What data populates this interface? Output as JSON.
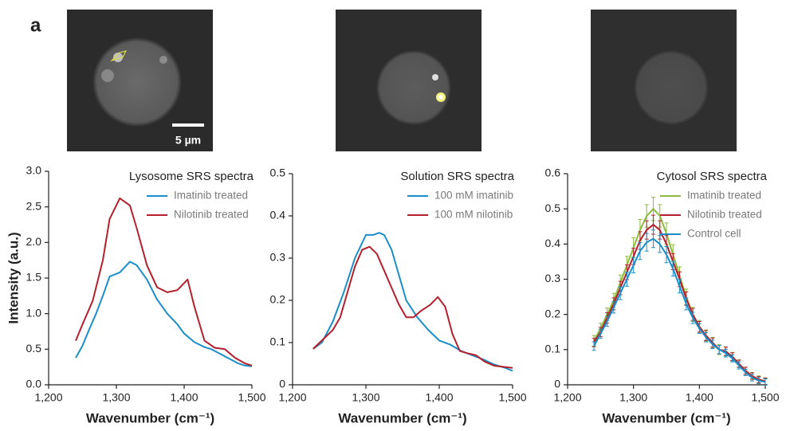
{
  "panel_label": "a",
  "scale_bar_label": "5 µm",
  "chart_data": [
    {
      "type": "line",
      "title": "Lysosome SRS spectra",
      "xlabel": "Wavenumber (cm⁻¹)",
      "ylabel": "Intensity (a.u.)",
      "xlim": [
        1200,
        1500
      ],
      "ylim": [
        0,
        3
      ],
      "xticks": [
        {
          "value": 1200,
          "label": "1,200"
        },
        {
          "value": 1300,
          "label": "1,300"
        },
        {
          "value": 1400,
          "label": "1,400"
        },
        {
          "value": 1500,
          "label": "1,500"
        }
      ],
      "yticks": [
        {
          "value": 0,
          "label": "0.0"
        },
        0.5,
        {
          "value": 1,
          "label": "1.0"
        },
        1.5,
        {
          "value": 2,
          "label": "2.0"
        },
        2.5,
        {
          "value": 3,
          "label": "3.0"
        }
      ],
      "series": [
        {
          "name": "Imatinib treated",
          "color": "#1b8ec9",
          "x": [
            1240,
            1250,
            1260,
            1270,
            1280,
            1290,
            1305,
            1320,
            1330,
            1345,
            1360,
            1375,
            1390,
            1400,
            1415,
            1430,
            1440,
            1460,
            1480,
            1490,
            1500
          ],
          "values": [
            0.38,
            0.55,
            0.78,
            1.0,
            1.25,
            1.52,
            1.58,
            1.73,
            1.68,
            1.48,
            1.2,
            1.0,
            0.85,
            0.72,
            0.6,
            0.53,
            0.5,
            0.4,
            0.3,
            0.27,
            0.26
          ]
        },
        {
          "name": "Nilotinib treated",
          "color": "#b3202d",
          "x": [
            1240,
            1250,
            1265,
            1280,
            1290,
            1305,
            1320,
            1330,
            1345,
            1360,
            1375,
            1390,
            1405,
            1415,
            1430,
            1445,
            1460,
            1475,
            1490,
            1500
          ],
          "values": [
            0.62,
            0.85,
            1.18,
            1.75,
            2.33,
            2.62,
            2.52,
            2.2,
            1.68,
            1.37,
            1.3,
            1.33,
            1.48,
            1.1,
            0.62,
            0.52,
            0.5,
            0.38,
            0.3,
            0.27
          ]
        }
      ]
    },
    {
      "type": "line",
      "title": "Solution SRS spectra",
      "xlabel": "Wavenumber (cm⁻¹)",
      "xlim": [
        1200,
        1500
      ],
      "ylim": [
        0,
        0.5
      ],
      "xticks": [
        {
          "value": 1200,
          "label": "1,200"
        },
        {
          "value": 1300,
          "label": "1,300"
        },
        {
          "value": 1400,
          "label": "1,400"
        },
        {
          "value": 1500,
          "label": "1,500"
        }
      ],
      "yticks": [
        0,
        0.1,
        0.2,
        0.3,
        0.4,
        0.5
      ],
      "series": [
        {
          "name": "100 mM imatinib",
          "color": "#1b8ec9",
          "x": [
            1228,
            1240,
            1255,
            1270,
            1285,
            1300,
            1310,
            1318,
            1325,
            1335,
            1345,
            1355,
            1370,
            1385,
            1400,
            1415,
            1430,
            1445,
            1460,
            1475,
            1490,
            1500
          ],
          "values": [
            0.085,
            0.1,
            0.15,
            0.22,
            0.3,
            0.355,
            0.355,
            0.36,
            0.355,
            0.32,
            0.26,
            0.2,
            0.16,
            0.13,
            0.105,
            0.095,
            0.08,
            0.07,
            0.06,
            0.048,
            0.04,
            0.033
          ]
        },
        {
          "name": "100 mM nilotinib",
          "color": "#b3202d",
          "x": [
            1228,
            1240,
            1255,
            1265,
            1275,
            1285,
            1295,
            1305,
            1315,
            1325,
            1335,
            1345,
            1355,
            1365,
            1375,
            1388,
            1398,
            1408,
            1418,
            1428,
            1438,
            1450,
            1462,
            1475,
            1490,
            1500
          ],
          "values": [
            0.085,
            0.105,
            0.13,
            0.16,
            0.22,
            0.28,
            0.32,
            0.327,
            0.31,
            0.27,
            0.23,
            0.19,
            0.16,
            0.16,
            0.175,
            0.19,
            0.208,
            0.185,
            0.12,
            0.08,
            0.075,
            0.07,
            0.055,
            0.045,
            0.042,
            0.04
          ]
        }
      ]
    },
    {
      "type": "line",
      "title": "Cytosol SRS spectra",
      "xlabel": "Wavenumber (cm⁻¹)",
      "xlim": [
        1200,
        1500
      ],
      "ylim": [
        0,
        0.6
      ],
      "xticks": [
        {
          "value": 1200,
          "label": "1,200"
        },
        {
          "value": 1300,
          "label": "1,300"
        },
        {
          "value": 1400,
          "label": "1,400"
        },
        {
          "value": 1500,
          "label": "1,500"
        }
      ],
      "yticks": [
        0,
        0.1,
        0.2,
        0.3,
        0.4,
        0.5,
        0.6
      ],
      "x": [
        1240,
        1250,
        1260,
        1270,
        1280,
        1290,
        1300,
        1310,
        1320,
        1330,
        1340,
        1350,
        1360,
        1370,
        1380,
        1390,
        1400,
        1410,
        1420,
        1430,
        1440,
        1450,
        1460,
        1470,
        1480,
        1490,
        1500
      ],
      "series": [
        {
          "name": "Imatinib treated",
          "color": "#8cba3c",
          "values": [
            0.125,
            0.16,
            0.2,
            0.24,
            0.29,
            0.34,
            0.39,
            0.44,
            0.48,
            0.5,
            0.48,
            0.43,
            0.37,
            0.31,
            0.25,
            0.2,
            0.165,
            0.14,
            0.12,
            0.1,
            0.095,
            0.08,
            0.06,
            0.04,
            0.025,
            0.015,
            0.01
          ],
          "errors": [
            0.015,
            0.015,
            0.018,
            0.02,
            0.022,
            0.025,
            0.028,
            0.03,
            0.032,
            0.033,
            0.032,
            0.03,
            0.028,
            0.025,
            0.022,
            0.02,
            0.018,
            0.016,
            0.015,
            0.014,
            0.013,
            0.012,
            0.011,
            0.01,
            0.01,
            0.01,
            0.01
          ]
        },
        {
          "name": "Nilotinib treated",
          "color": "#b3202d",
          "values": [
            0.12,
            0.15,
            0.19,
            0.23,
            0.275,
            0.32,
            0.365,
            0.41,
            0.44,
            0.455,
            0.44,
            0.4,
            0.35,
            0.3,
            0.245,
            0.2,
            0.165,
            0.14,
            0.12,
            0.1,
            0.095,
            0.08,
            0.06,
            0.04,
            0.025,
            0.015,
            0.01
          ],
          "errors": [
            0.012,
            0.013,
            0.015,
            0.017,
            0.019,
            0.021,
            0.023,
            0.025,
            0.026,
            0.027,
            0.026,
            0.025,
            0.023,
            0.021,
            0.019,
            0.017,
            0.015,
            0.014,
            0.013,
            0.012,
            0.012,
            0.011,
            0.01,
            0.01,
            0.009,
            0.009,
            0.009
          ]
        },
        {
          "name": "Control cell",
          "color": "#1b8ec9",
          "values": [
            0.11,
            0.145,
            0.18,
            0.22,
            0.26,
            0.3,
            0.34,
            0.38,
            0.405,
            0.415,
            0.4,
            0.37,
            0.33,
            0.28,
            0.23,
            0.19,
            0.16,
            0.135,
            0.115,
            0.1,
            0.09,
            0.075,
            0.055,
            0.035,
            0.02,
            0.012,
            0.008
          ],
          "errors": [
            0.012,
            0.013,
            0.014,
            0.016,
            0.018,
            0.02,
            0.022,
            0.024,
            0.025,
            0.025,
            0.024,
            0.023,
            0.021,
            0.019,
            0.017,
            0.016,
            0.014,
            0.013,
            0.012,
            0.012,
            0.011,
            0.01,
            0.01,
            0.009,
            0.009,
            0.009,
            0.009
          ]
        }
      ]
    }
  ]
}
